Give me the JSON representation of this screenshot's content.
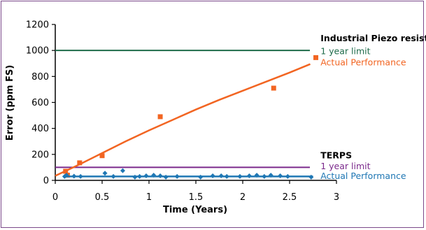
{
  "chart_data": {
    "type": "scatter",
    "title": "",
    "xlabel": "Time (Years)",
    "ylabel": "Error (ppm FS)",
    "xlim": [
      0,
      3
    ],
    "ylim": [
      0,
      1200
    ],
    "x_ticks": [
      {
        "value": 0,
        "label": "0"
      },
      {
        "value": 0.5,
        "label": "0.5"
      },
      {
        "value": 1,
        "label": "1"
      },
      {
        "value": 1.5,
        "label": "1.5"
      },
      {
        "value": 2,
        "label": "2"
      },
      {
        "value": 2.5,
        "label": "2.5"
      },
      {
        "value": 3,
        "label": "3"
      }
    ],
    "y_ticks": [
      {
        "value": 0,
        "label": "0"
      },
      {
        "value": 200,
        "label": "200"
      },
      {
        "value": 400,
        "label": "400"
      },
      {
        "value": 600,
        "label": "600"
      },
      {
        "value": 800,
        "label": "800"
      },
      {
        "value": 1000,
        "label": "1000"
      },
      {
        "value": 1200,
        "label": "1200"
      }
    ],
    "grid": false,
    "reference_lines": [
      {
        "value": 1000,
        "color": "#1e6b4a",
        "width": 2
      },
      {
        "value": 100,
        "color": "#7b2a8c",
        "width": 2
      }
    ],
    "series": [
      {
        "marker": "square",
        "color": "#f26522",
        "x": [
          0.11,
          0.13,
          0.26,
          0.5,
          1.12,
          2.33,
          2.78
        ],
        "y": [
          70,
          40,
          135,
          190,
          490,
          710,
          945
        ]
      },
      {
        "marker": "line",
        "color": "#f26522",
        "x": [
          0,
          0.25,
          0.5,
          0.75,
          1.0,
          1.25,
          1.5,
          1.75,
          2.0,
          2.25,
          2.5,
          2.72
        ],
        "y": [
          35,
          120,
          210,
          300,
          385,
          465,
          545,
          620,
          690,
          760,
          830,
          895
        ]
      },
      {
        "marker": "diamond",
        "color": "#1f77b4",
        "x": [
          0.1,
          0.12,
          0.2,
          0.27,
          0.53,
          0.62,
          0.72,
          0.85,
          0.9,
          0.97,
          1.05,
          1.12,
          1.18,
          1.3,
          1.55,
          1.68,
          1.77,
          1.83,
          1.97,
          2.07,
          2.15,
          2.23,
          2.3,
          2.4,
          2.48,
          2.73
        ],
        "y": [
          30,
          40,
          32,
          30,
          55,
          30,
          75,
          25,
          30,
          35,
          40,
          35,
          25,
          30,
          25,
          35,
          35,
          30,
          30,
          35,
          40,
          30,
          40,
          35,
          30,
          25
        ]
      },
      {
        "marker": "line",
        "color": "#1f77b4",
        "x": [
          0.1,
          2.75
        ],
        "y": [
          30,
          30
        ]
      }
    ],
    "annotations": [
      {
        "text": "Industrial Piezo resistive",
        "color": "#000000",
        "bold": true,
        "x": 2.83,
        "y": 1095
      },
      {
        "text": "1 year limit",
        "color": "#1e6b4a",
        "bold": false,
        "x": 2.83,
        "y": 995
      },
      {
        "text": "Actual Performance",
        "color": "#f26522",
        "bold": false,
        "x": 2.83,
        "y": 910
      },
      {
        "text": "TERPS",
        "color": "#000000",
        "bold": true,
        "x": 2.83,
        "y": 195
      },
      {
        "text": "1 year limit",
        "color": "#7b2a8c",
        "bold": false,
        "x": 2.83,
        "y": 110
      },
      {
        "text": "Actual Performance",
        "color": "#1f77b4",
        "bold": false,
        "x": 2.83,
        "y": 35
      }
    ]
  }
}
